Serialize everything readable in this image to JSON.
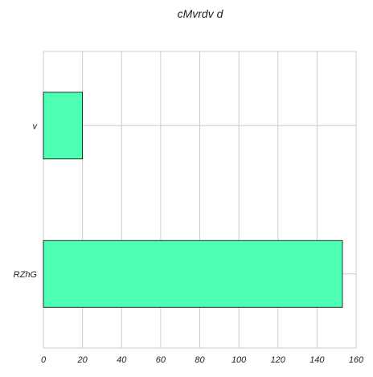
{
  "chart_data": {
    "type": "bar",
    "orientation": "horizontal",
    "title": "cMvrdv d",
    "categories": [
      "v",
      "RZhG"
    ],
    "values": [
      20,
      153
    ],
    "xlabel": "",
    "ylabel": "",
    "xlim": [
      0,
      160
    ],
    "xticks": [
      0,
      20,
      40,
      60,
      80,
      100,
      120,
      140,
      160
    ],
    "grid": true,
    "bar_color": "#4dffb3",
    "bar_edge_color": "#000000",
    "grid_color": "#cccccc"
  }
}
